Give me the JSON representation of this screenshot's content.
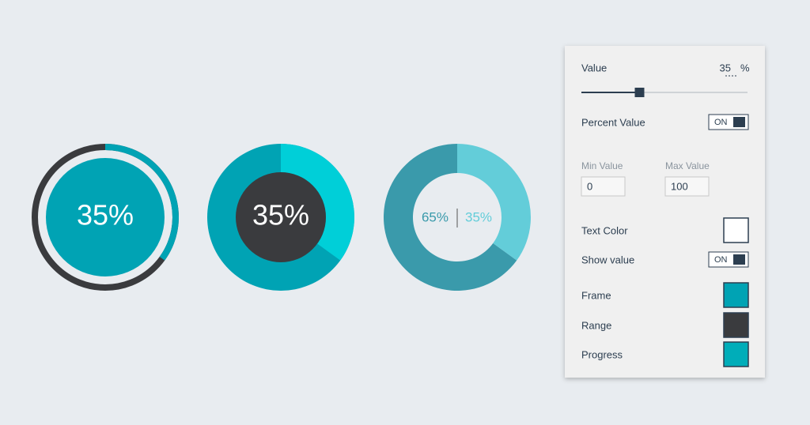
{
  "gauges": [
    {
      "value": 35,
      "label": "35%",
      "range_color": "#3a3b3e",
      "progress_color": "#00a3b4",
      "fill_color": "#00a3b4"
    },
    {
      "value": 35,
      "label": "35%",
      "range_color": "#00a3b4",
      "progress_color": "#00cfd8",
      "fill_color": "#3a3b3e"
    },
    {
      "segments": [
        {
          "value": 65,
          "label": "65%",
          "color": "#3a9aab"
        },
        {
          "value": 35,
          "label": "35%",
          "color": "#63cdd9"
        }
      ]
    }
  ],
  "panel": {
    "value_label": "Value",
    "value": 35,
    "unit": "%",
    "percent_label": "Percent Value",
    "percent_toggle": "ON",
    "min_label": "Min Value",
    "min_value": 0,
    "max_label": "Max Value",
    "max_value": 100,
    "text_color_label": "Text Color",
    "text_color": "#ffffff",
    "show_value_label": "Show value",
    "show_value_toggle": "ON",
    "frame_label": "Frame",
    "frame_color": "#00a3b4",
    "range_label": "Range",
    "range_color": "#3a3b3e",
    "progress_label": "Progress",
    "progress_color": "#00adb9"
  }
}
